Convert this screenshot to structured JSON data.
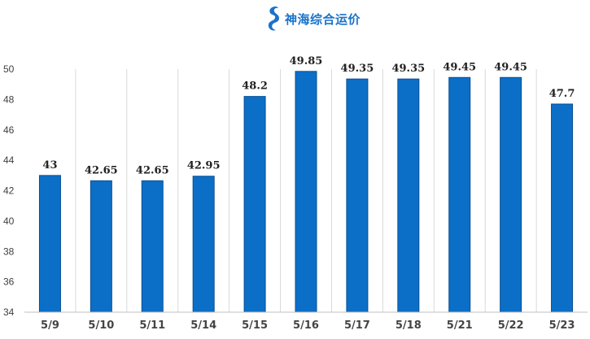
{
  "brand": {
    "name": "神海综合运价",
    "icon": "seahorse-logo-icon",
    "color": "#1a73c9"
  },
  "chart_data": {
    "type": "bar",
    "categories": [
      "5/9",
      "5/10",
      "5/11",
      "5/14",
      "5/15",
      "5/16",
      "5/17",
      "5/18",
      "5/21",
      "5/22",
      "5/23"
    ],
    "values": [
      43,
      42.65,
      42.65,
      42.95,
      48.2,
      49.85,
      49.35,
      49.35,
      49.45,
      49.45,
      47.7
    ],
    "data_labels": [
      "43",
      "42.65",
      "42.65",
      "42.95",
      "48.2",
      "49.85",
      "49.35",
      "49.35",
      "49.45",
      "49.45",
      "47.7"
    ],
    "yticks": [
      "34",
      "36",
      "38",
      "40",
      "42",
      "44",
      "46",
      "48",
      "50"
    ],
    "ylim": [
      34,
      50
    ],
    "title": "",
    "xlabel": "",
    "ylabel": "",
    "grid": "vertical category separators",
    "bar_color": "#0b6fc7",
    "bar_edge_color": "#0a4f94"
  }
}
